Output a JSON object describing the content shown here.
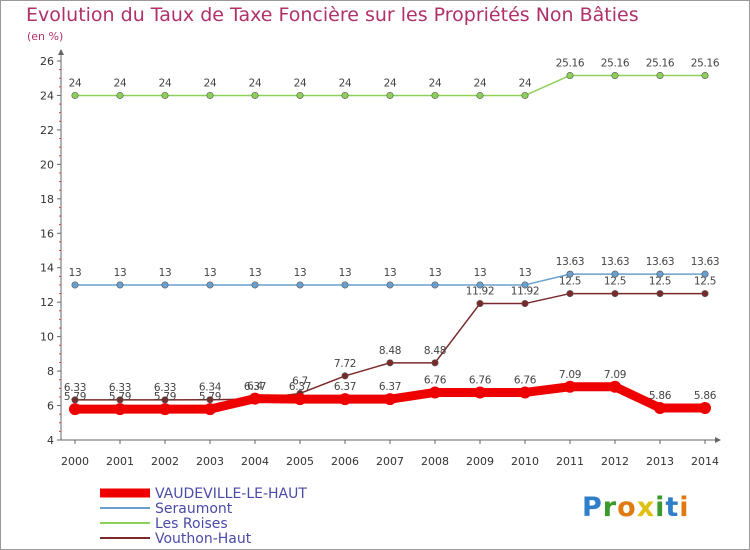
{
  "title": "Evolution du Taux de Taxe Foncière sur les Propriétés Non Bâties",
  "subtitle": "(en %)",
  "logo": {
    "text": "Proxiti"
  },
  "chart_data": {
    "type": "line",
    "title": "Evolution du Taux de Taxe Foncière sur les Propriétés Non Bâties",
    "ylabel": "(en %)",
    "xlabel": "",
    "x": [
      "2000",
      "2001",
      "2002",
      "2003",
      "2004",
      "2005",
      "2006",
      "2007",
      "2008",
      "2009",
      "2010",
      "2011",
      "2012",
      "2013",
      "2014"
    ],
    "ylim": [
      4,
      26
    ],
    "yticks": [
      4,
      6,
      8,
      10,
      12,
      14,
      16,
      18,
      20,
      22,
      24,
      26
    ],
    "grid": false,
    "legend": "bottom-left",
    "series": [
      {
        "name": "Vouthon-Haut",
        "color": "#7a2a2a",
        "values": [
          6.33,
          6.33,
          6.33,
          6.34,
          6.37,
          6.7,
          7.72,
          8.48,
          8.48,
          11.92,
          11.92,
          12.5,
          12.5,
          12.5,
          12.5
        ],
        "labels": [
          "6.33",
          "6.33",
          "6.33",
          "6.34",
          "6.37",
          "6.7",
          "7.72",
          "8.48",
          "8.48",
          "11.92",
          "11.92",
          "12.5",
          "12.5",
          "12.5",
          "12.5"
        ]
      },
      {
        "name": "Les Roises",
        "color": "#8ed05a",
        "values": [
          24,
          24,
          24,
          24,
          24,
          24,
          24,
          24,
          24,
          24,
          24,
          25.16,
          25.16,
          25.16,
          25.16
        ],
        "labels": [
          "24",
          "24",
          "24",
          "24",
          "24",
          "24",
          "24",
          "24",
          "24",
          "24",
          "24",
          "25.16",
          "25.16",
          "25.16",
          "25.16"
        ]
      },
      {
        "name": "Seraumont",
        "color": "#6aa0d0",
        "values": [
          13,
          13,
          13,
          13,
          13,
          13,
          13,
          13,
          13,
          13,
          13,
          13.63,
          13.63,
          13.63,
          13.63
        ],
        "labels": [
          "13",
          "13",
          "13",
          "13",
          "13",
          "13",
          "13",
          "13",
          "13",
          "13",
          "13",
          "13.63",
          "13.63",
          "13.63",
          "13.63"
        ]
      },
      {
        "name": "VAUDEVILLE-LE-HAUT",
        "color": "#ee0000",
        "values": [
          5.79,
          5.79,
          5.79,
          5.79,
          6.4,
          6.37,
          6.37,
          6.37,
          6.76,
          6.76,
          6.76,
          7.09,
          7.09,
          5.86,
          5.86
        ],
        "labels": [
          "5.79",
          "5.79",
          "5.79",
          "5.79",
          "6.4",
          "6.37",
          "6.37",
          "6.37",
          "6.76",
          "6.76",
          "6.76",
          "7.09",
          "7.09",
          "5.86",
          "5.86"
        ]
      }
    ],
    "legend_order": [
      "VAUDEVILLE-LE-HAUT",
      "Seraumont",
      "Les Roises",
      "Vouthon-Haut"
    ]
  }
}
